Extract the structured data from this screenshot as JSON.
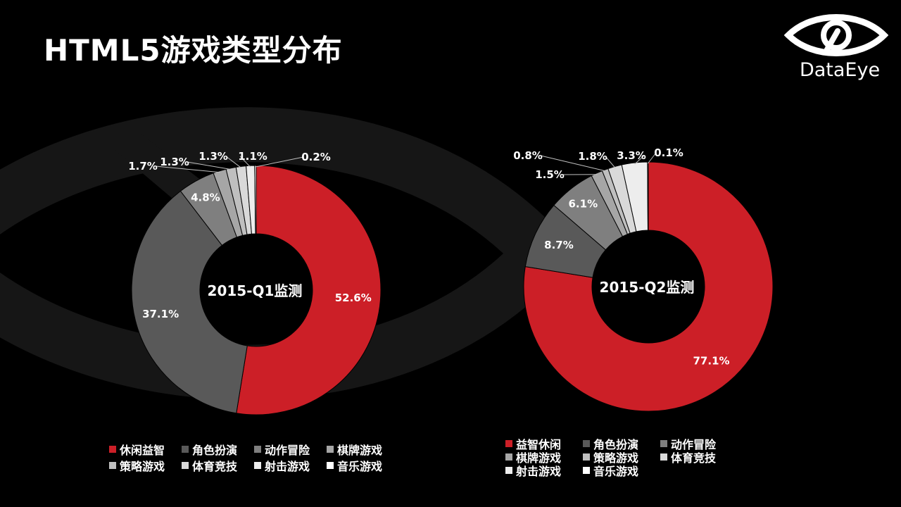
{
  "page": {
    "title": "HTML5游戏类型分布"
  },
  "logo": {
    "text": "DataEye"
  },
  "colors": {
    "background": "#000000",
    "eye_watermark": "#161616",
    "red": "#cc1f27",
    "center": "#000000"
  },
  "chart_data": [
    {
      "type": "pie",
      "center_label": "2015-Q1监测",
      "legend_placement": "bottom",
      "slices": [
        {
          "label": "休闲益智",
          "value": 52.6,
          "display": "52.6%",
          "color": "#cc1f27"
        },
        {
          "label": "角色扮演",
          "value": 37.1,
          "display": "37.1%",
          "color": "#595959"
        },
        {
          "label": "动作冒险",
          "value": 4.8,
          "display": "4.8%",
          "color": "#7f7f7f"
        },
        {
          "label": "棋牌游戏",
          "value": 1.7,
          "display": "1.7%",
          "color": "#a6a6a6"
        },
        {
          "label": "策略游戏",
          "value": 1.3,
          "display": "1.3%",
          "color": "#bfbfbf"
        },
        {
          "label": "体育竞技",
          "value": 1.3,
          "display": "1.3%",
          "color": "#d9d9d9"
        },
        {
          "label": "射击游戏",
          "value": 1.1,
          "display": "1.1%",
          "color": "#ededed"
        },
        {
          "label": "音乐游戏",
          "value": 0.2,
          "display": "0.2%",
          "color": "#ffffff"
        }
      ]
    },
    {
      "type": "pie",
      "center_label": "2015-Q2监测",
      "legend_placement": "bottom",
      "slices": [
        {
          "label": "益智休闲",
          "value": 77.1,
          "display": "77.1%",
          "color": "#cc1f27"
        },
        {
          "label": "角色扮演",
          "value": 8.7,
          "display": "8.7%",
          "color": "#595959"
        },
        {
          "label": "动作冒险",
          "value": 6.1,
          "display": "6.1%",
          "color": "#7f7f7f"
        },
        {
          "label": "棋牌游戏",
          "value": 1.5,
          "display": "1.5%",
          "color": "#a6a6a6"
        },
        {
          "label": "策略游戏",
          "value": 0.8,
          "display": "0.8%",
          "color": "#bfbfbf"
        },
        {
          "label": "体育竞技",
          "value": 1.8,
          "display": "1.8%",
          "color": "#d9d9d9"
        },
        {
          "label": "射击游戏",
          "value": 3.3,
          "display": "3.3%",
          "color": "#ededed"
        },
        {
          "label": "音乐游戏",
          "value": 0.1,
          "display": "0.1%",
          "color": "#ffffff"
        }
      ]
    }
  ]
}
